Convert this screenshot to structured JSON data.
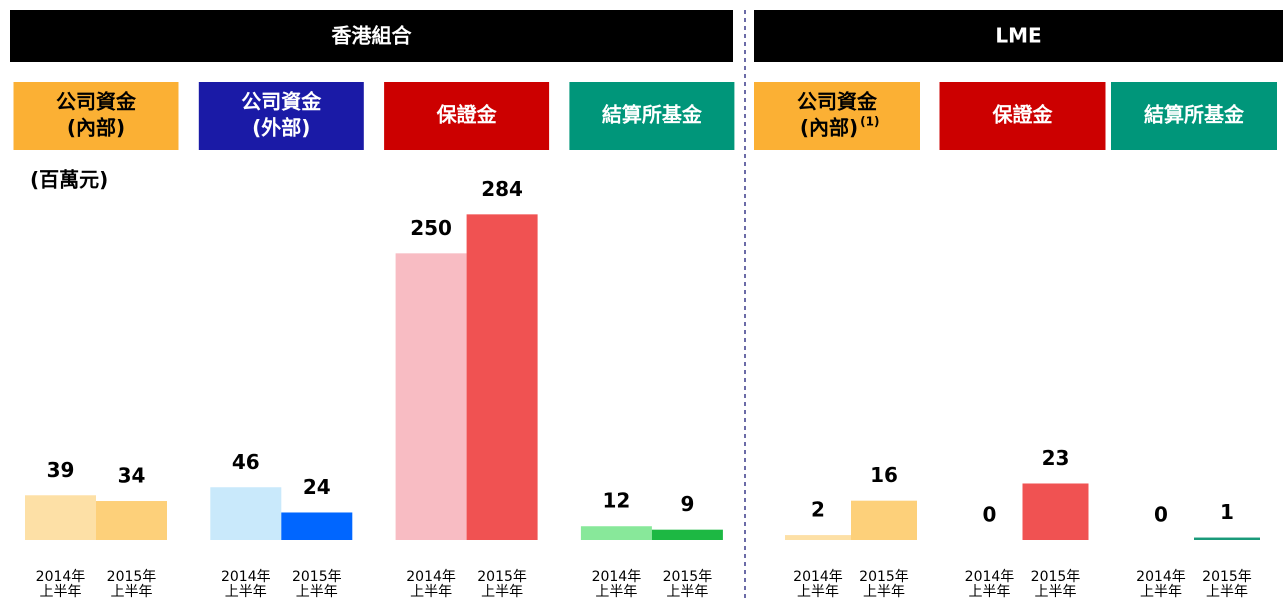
{
  "chart_data": [
    {
      "type": "bar",
      "title": "香港組合",
      "subtitle": "(百萬元)",
      "ylim": [
        0,
        300
      ],
      "categories": [
        [
          "2014年",
          "上半年"
        ],
        [
          "2015年",
          "上半年"
        ]
      ],
      "series": [
        {
          "name": [
            "公司資金",
            "(內部)"
          ],
          "color": "#fbb034",
          "text_color": "#000000",
          "colors": [
            "#fde0a6",
            "#fdd07a"
          ],
          "values": [
            39,
            34
          ]
        },
        {
          "name": [
            "公司資金",
            "(外部)"
          ],
          "color": "#1a1aa6",
          "text_color": "#ffffff",
          "colors": [
            "#c9e9fb",
            "#0066ff"
          ],
          "values": [
            46,
            24
          ]
        },
        {
          "name": [
            "保證金"
          ],
          "color": "#cc0000",
          "text_color": "#ffffff",
          "colors": [
            "#f8bcc3",
            "#f05252"
          ],
          "values": [
            250,
            284
          ]
        },
        {
          "name": [
            "結算所基金"
          ],
          "color": "#00967a",
          "text_color": "#ffffff",
          "colors": [
            "#88e89a",
            "#1db843"
          ],
          "values": [
            12,
            9
          ]
        }
      ]
    },
    {
      "type": "bar",
      "title": "LME",
      "ylim": [
        0,
        140
      ],
      "categories": [
        [
          "2014年",
          "上半年"
        ],
        [
          "2015年",
          "上半年"
        ]
      ],
      "series": [
        {
          "name": [
            "公司資金",
            "(內部)"
          ],
          "note": "(1)",
          "color": "#fbb034",
          "text_color": "#000000",
          "colors": [
            "#fde0a6",
            "#fdd07a"
          ],
          "values": [
            2,
            16
          ]
        },
        {
          "name": [
            "保證金"
          ],
          "color": "#cc0000",
          "text_color": "#ffffff",
          "colors": [
            "#f8bcc3",
            "#f05252"
          ],
          "values": [
            0,
            23
          ]
        },
        {
          "name": [
            "結算所基金"
          ],
          "color": "#00967a",
          "text_color": "#ffffff",
          "colors": [
            "#88e89a",
            "#1a9a7a"
          ],
          "values": [
            0,
            1
          ]
        }
      ]
    }
  ]
}
